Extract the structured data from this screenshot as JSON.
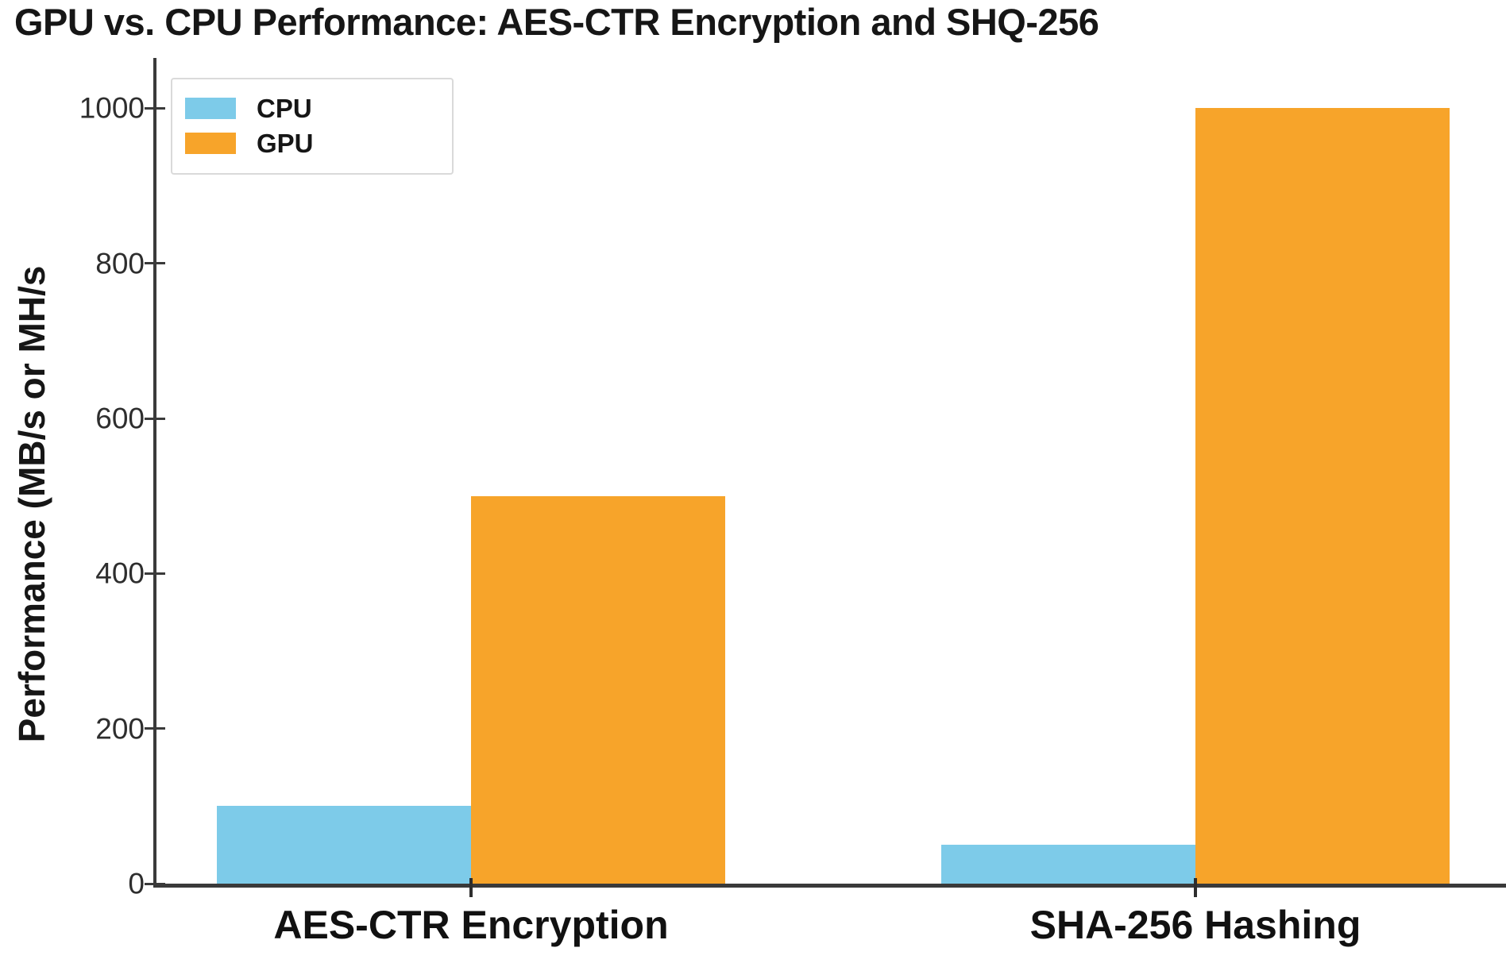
{
  "title": "GPU vs. CPU Performance: AES-CTR Encryption and SHQ-256",
  "chart_data": {
    "type": "bar",
    "title": "GPU vs. CPU Performance: AES-CTR Encryption and SHQ-256",
    "categories": [
      "AES-CTR Encryption",
      "SHA-256 Hashing"
    ],
    "series": [
      {
        "name": "CPU",
        "color": "#7dcbe9",
        "values": [
          100,
          50
        ]
      },
      {
        "name": "GPU",
        "color": "#f7a42a",
        "values": [
          500,
          1000
        ]
      }
    ],
    "xlabel": "",
    "ylabel": "Performance (MB/s or MH/s",
    "yticks": [
      0,
      200,
      400,
      600,
      800,
      1000
    ],
    "ylim": [
      0,
      1065
    ],
    "grid": false,
    "legend_position": "upper left",
    "colors": {
      "cpu": "#7dcbe9",
      "gpu": "#f7a42a",
      "axis": "#3a3a3a",
      "text": "#161616",
      "tick_text": "#2e2e2e",
      "legend_border": "#dadada"
    }
  }
}
